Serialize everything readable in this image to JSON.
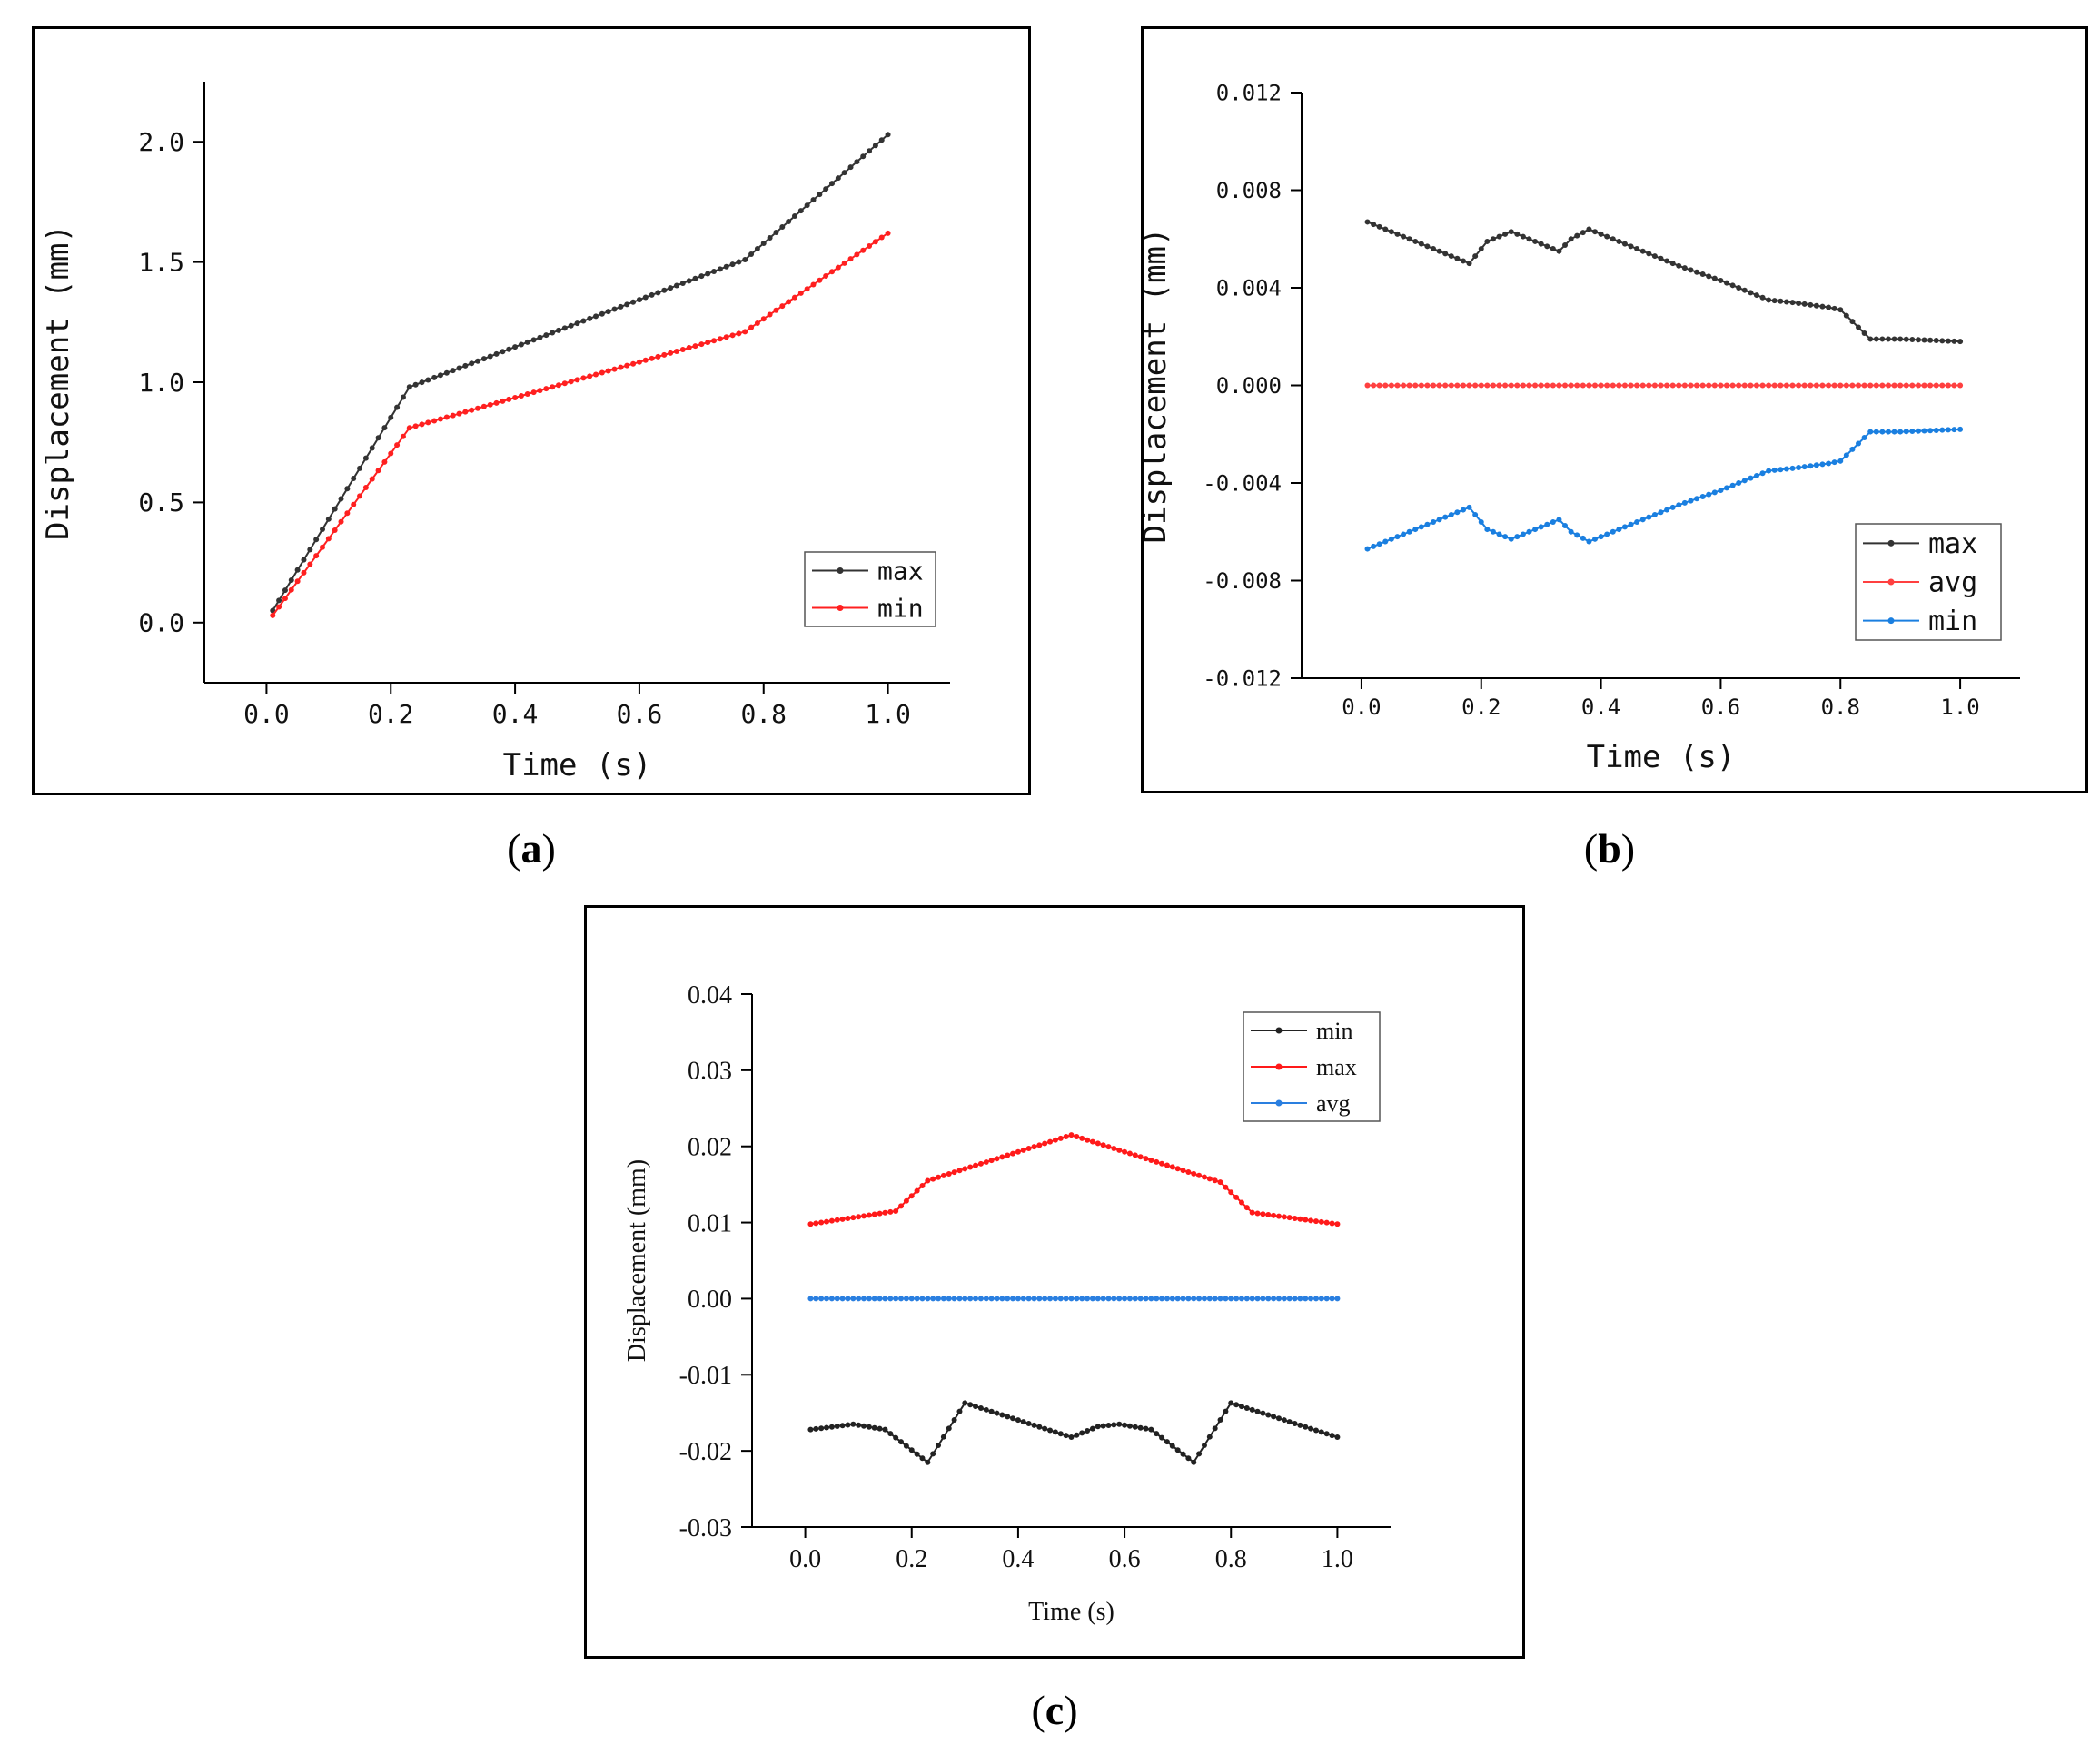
{
  "captions": {
    "a": "a",
    "b": "b",
    "c": "c"
  },
  "chart_data": [
    {
      "id": "a",
      "type": "line",
      "xlabel": "Time (s)",
      "ylabel": "Displacement (mm)",
      "xlim": [
        -0.1,
        1.1
      ],
      "ylim": [
        -0.25,
        2.25
      ],
      "xticks": [
        0.0,
        0.2,
        0.4,
        0.6,
        0.8,
        1.0
      ],
      "xtick_labels": [
        "0.0",
        "0.2",
        "0.4",
        "0.6",
        "0.8",
        "1.0"
      ],
      "yticks": [
        0.0,
        0.5,
        1.0,
        1.5,
        2.0
      ],
      "ytick_labels": [
        "0.0",
        "0.5",
        "1.0",
        "1.5",
        "2.0"
      ],
      "legend_position": "bottom-right",
      "series": [
        {
          "name": "max",
          "color": "#333333",
          "x": [
            0.01,
            0.23,
            0.77,
            1.0
          ],
          "y": [
            0.05,
            0.98,
            1.51,
            2.03
          ]
        },
        {
          "name": "min",
          "color": "#ff2020",
          "x": [
            0.01,
            0.23,
            0.77,
            1.0
          ],
          "y": [
            0.03,
            0.81,
            1.21,
            1.62
          ]
        }
      ]
    },
    {
      "id": "b",
      "type": "line",
      "xlabel": "Time (s)",
      "ylabel": "Displacement (mm)",
      "xlim": [
        -0.1,
        1.1
      ],
      "ylim": [
        -0.012,
        0.012
      ],
      "xticks": [
        0.0,
        0.2,
        0.4,
        0.6,
        0.8,
        1.0
      ],
      "xtick_labels": [
        "0.0",
        "0.2",
        "0.4",
        "0.6",
        "0.8",
        "1.0"
      ],
      "yticks": [
        -0.012,
        -0.008,
        -0.004,
        0.0,
        0.004,
        0.008,
        0.012
      ],
      "ytick_labels": [
        "-0.012",
        "-0.008",
        "-0.004",
        "0.000",
        "0.004",
        "0.008",
        "0.012"
      ],
      "legend_position": "bottom-right",
      "series": [
        {
          "name": "max",
          "color": "#333333",
          "x": [
            0.01,
            0.18,
            0.21,
            0.25,
            0.33,
            0.35,
            0.38,
            0.53,
            0.6,
            0.68,
            0.72,
            0.75,
            0.78,
            0.8,
            0.85,
            0.9,
            1.0
          ],
          "y": [
            0.0067,
            0.005,
            0.0059,
            0.0063,
            0.0055,
            0.006,
            0.0064,
            0.0049,
            0.0043,
            0.0035,
            0.0034,
            0.0033,
            0.0032,
            0.0031,
            0.0019,
            0.0019,
            0.0018
          ]
        },
        {
          "name": "avg",
          "color": "#ff4040",
          "x": [
            0.01,
            1.0
          ],
          "y": [
            0.0,
            0.0
          ]
        },
        {
          "name": "min",
          "color": "#1a7fe0",
          "x": [
            0.01,
            0.18,
            0.21,
            0.25,
            0.33,
            0.35,
            0.38,
            0.53,
            0.6,
            0.68,
            0.72,
            0.75,
            0.78,
            0.8,
            0.85,
            0.9,
            1.0
          ],
          "y": [
            -0.0067,
            -0.005,
            -0.0059,
            -0.0063,
            -0.0055,
            -0.006,
            -0.0064,
            -0.0049,
            -0.0043,
            -0.0035,
            -0.0034,
            -0.0033,
            -0.0032,
            -0.0031,
            -0.0019,
            -0.0019,
            -0.0018
          ]
        }
      ]
    },
    {
      "id": "c",
      "type": "line",
      "xlabel": "Time (s)",
      "ylabel": "Displacement (mm)",
      "xlim": [
        -0.1,
        1.1
      ],
      "ylim": [
        -0.03,
        0.04
      ],
      "xticks": [
        0.0,
        0.2,
        0.4,
        0.6,
        0.8,
        1.0
      ],
      "xtick_labels": [
        "0.0",
        "0.2",
        "0.4",
        "0.6",
        "0.8",
        "1.0"
      ],
      "yticks": [
        -0.03,
        -0.02,
        -0.01,
        0.0,
        0.01,
        0.02,
        0.03,
        0.04
      ],
      "ytick_labels": [
        "-0.03",
        "-0.02",
        "-0.01",
        "0.00",
        "0.01",
        "0.02",
        "0.03",
        "0.04"
      ],
      "legend_position": "top-right",
      "series": [
        {
          "name": "min",
          "color": "#222222",
          "x": [
            0.01,
            0.09,
            0.15,
            0.23,
            0.3,
            0.5,
            0.55,
            0.59,
            0.65,
            0.73,
            0.8,
            1.0
          ],
          "y": [
            -0.0172,
            -0.0165,
            -0.0172,
            -0.0215,
            -0.0137,
            -0.0182,
            -0.0168,
            -0.0165,
            -0.0172,
            -0.0215,
            -0.0137,
            -0.0182
          ]
        },
        {
          "name": "max",
          "color": "#ff1a1a",
          "x": [
            0.01,
            0.17,
            0.23,
            0.5,
            0.78,
            0.84,
            1.0
          ],
          "y": [
            0.0098,
            0.0115,
            0.0155,
            0.0215,
            0.0153,
            0.0113,
            0.0098
          ]
        },
        {
          "name": "avg",
          "color": "#2a7fe0",
          "x": [
            0.01,
            1.0
          ],
          "y": [
            0.0,
            0.0
          ]
        }
      ]
    }
  ]
}
